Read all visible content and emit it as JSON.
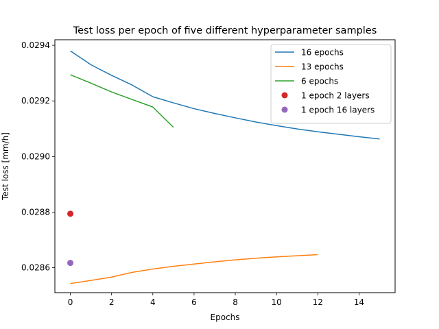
{
  "chart_data": {
    "type": "line",
    "title": "Test loss per epoch of five different hyperparameter samples",
    "xlabel": "Epochs",
    "ylabel": "Test loss [mm/h]",
    "xlim": [
      -0.75,
      15.75
    ],
    "ylim": [
      0.02851,
      0.02942
    ],
    "xticks": [
      0,
      2,
      4,
      6,
      8,
      10,
      12,
      14
    ],
    "yticks": [
      0.0286,
      0.0288,
      0.029,
      0.0292,
      0.0294
    ],
    "ytick_labels": [
      "0.0286",
      "0.0288",
      "0.0290",
      "0.0292",
      "0.0294"
    ],
    "grid": false,
    "legend_position": "top-right",
    "series": [
      {
        "name": "16 epochs",
        "kind": "line",
        "color": "#1f77b4",
        "x": [
          0,
          1,
          2,
          3,
          4,
          5,
          6,
          7,
          8,
          9,
          10,
          11,
          12,
          13,
          14,
          15
        ],
        "y": [
          0.02938,
          0.02933,
          0.029292,
          0.029257,
          0.029215,
          0.029193,
          0.029172,
          0.029155,
          0.029139,
          0.029124,
          0.029111,
          0.029099,
          0.029089,
          0.02908,
          0.029071,
          0.029063
        ]
      },
      {
        "name": "13 epochs",
        "kind": "line",
        "color": "#ff7f0e",
        "x": [
          0,
          1,
          2,
          3,
          4,
          5,
          6,
          7,
          8,
          9,
          10,
          11,
          12
        ],
        "y": [
          0.028543,
          0.028554,
          0.028566,
          0.028583,
          0.028595,
          0.028605,
          0.028613,
          0.028621,
          0.028628,
          0.028634,
          0.028639,
          0.028643,
          0.028647
        ]
      },
      {
        "name": "6 epochs",
        "kind": "line",
        "color": "#2ca02c",
        "x": [
          0,
          1,
          2,
          3,
          4,
          5
        ],
        "y": [
          0.029294,
          0.029264,
          0.029232,
          0.029205,
          0.029178,
          0.029105
        ]
      },
      {
        "name": "1 epoch 2 layers",
        "kind": "point",
        "color": "#d62728",
        "x": [
          0
        ],
        "y": [
          0.028794
        ]
      },
      {
        "name": "1 epoch 16 layers",
        "kind": "point",
        "color": "#9467bd",
        "x": [
          0
        ],
        "y": [
          0.028617
        ]
      }
    ]
  }
}
